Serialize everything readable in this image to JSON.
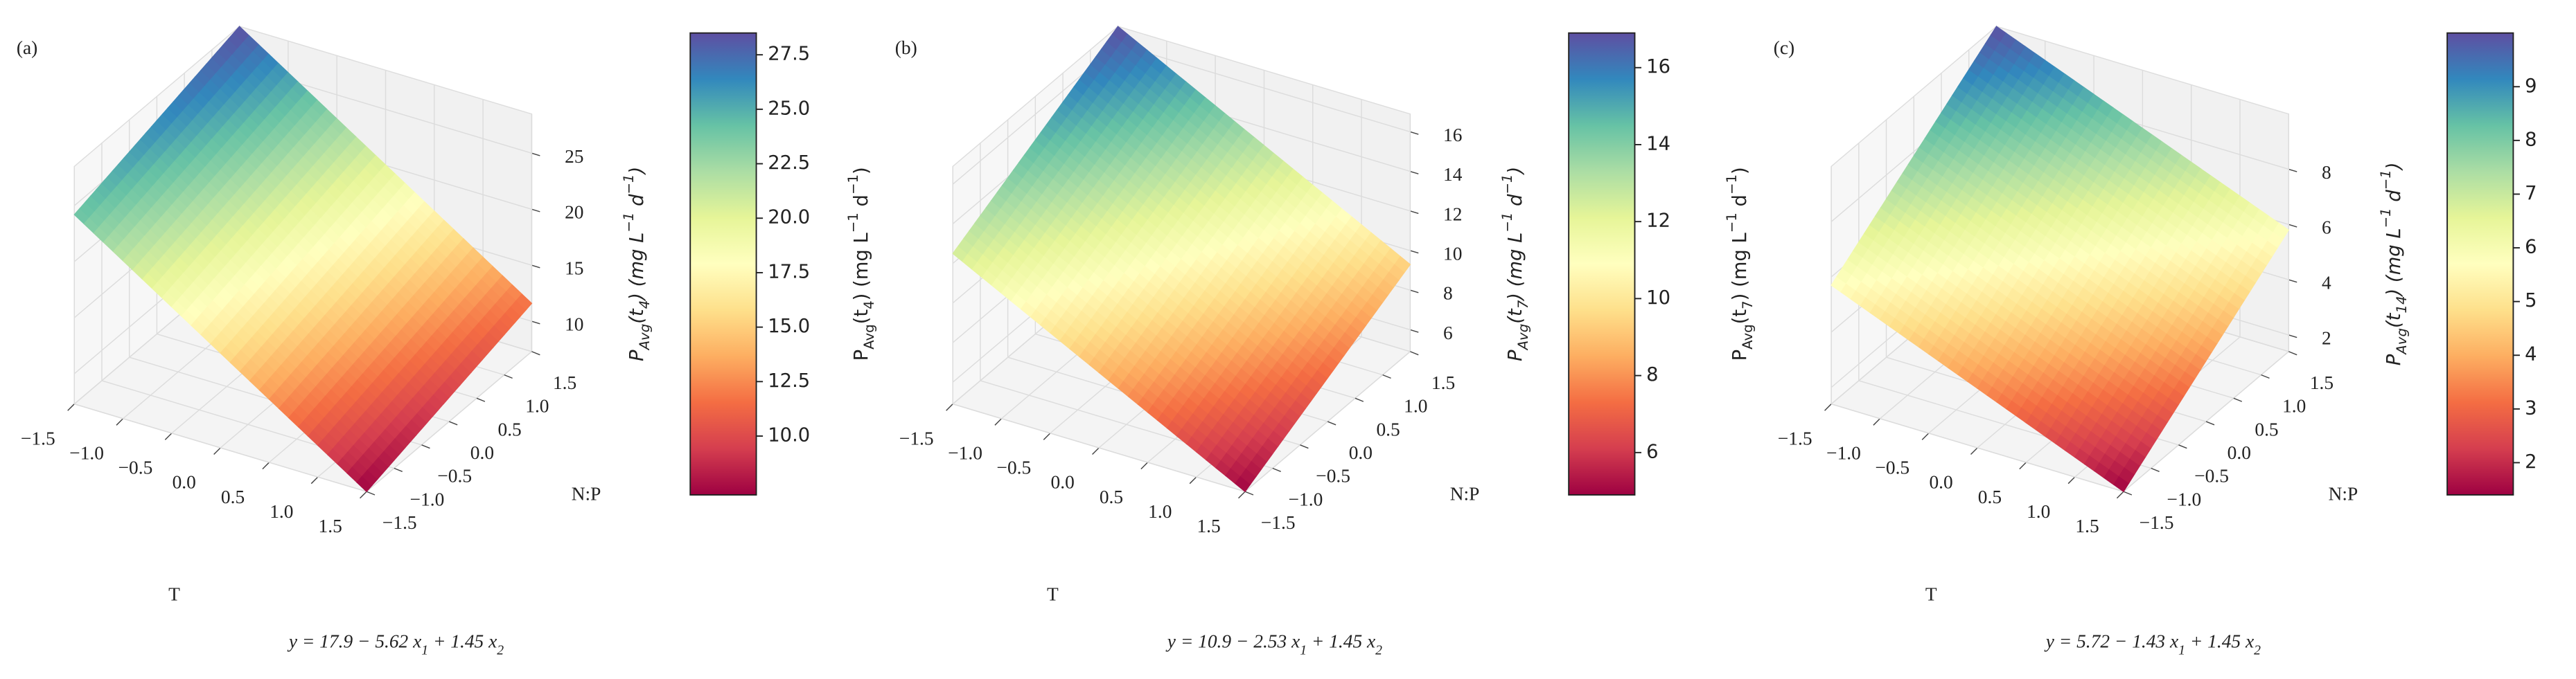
{
  "chart_data": [
    {
      "type": "surface",
      "title": "(a)",
      "xlabel": "T",
      "ylabel": "N:P",
      "zlabel": [
        "P",
        "Avg",
        "(t",
        "4",
        ") (mg L",
        "−1",
        " d",
        "−1",
        ")"
      ],
      "equation": [
        "y = 17.9 − 5.62 x",
        "1",
        " + 1.45 x",
        "2"
      ],
      "x": [
        -1.5,
        1.5
      ],
      "y": [
        -1.5,
        1.5
      ],
      "z": [
        [
          24.2,
          28.5
        ],
        [
          7.3,
          11.6
        ]
      ],
      "xlim": [
        -1.5,
        1.5
      ],
      "ylim": [
        -1.5,
        1.5
      ],
      "zlim": [
        7.3,
        28.5
      ],
      "xticks": [
        {
          "value": -1.5,
          "label": "−1.5"
        },
        {
          "value": -1,
          "label": "−1.0"
        },
        {
          "value": -0.5,
          "label": "−0.5"
        },
        {
          "value": 0,
          "label": "0.0"
        },
        0.5,
        {
          "value": 1,
          "label": "1.0"
        },
        1.5
      ],
      "yticks": [
        {
          "value": -1.5,
          "label": "−1.5"
        },
        {
          "value": -1,
          "label": "−1.0"
        },
        {
          "value": -0.5,
          "label": "−0.5"
        },
        {
          "value": 0,
          "label": "0.0"
        },
        0.5,
        {
          "value": 1,
          "label": "1.0"
        },
        1.5
      ],
      "zticks": [
        10,
        15,
        20,
        25
      ],
      "clim": [
        7.3,
        28.5
      ],
      "cticks": [
        {
          "value": 10,
          "label": "10.0"
        },
        12.5,
        {
          "value": 15,
          "label": "15.0"
        },
        17.5,
        {
          "value": 20,
          "label": "20.0"
        },
        22.5,
        {
          "value": 25,
          "label": "25.0"
        },
        27.5
      ],
      "colormap": [
        "#9e0142",
        "#d53e4f",
        "#f46d43",
        "#fdae61",
        "#fee08b",
        "#ffffbf",
        "#e6f598",
        "#abdda4",
        "#66c2a5",
        "#3288bd",
        "#5e4fa2"
      ]
    },
    {
      "type": "surface",
      "title": "(b)",
      "xlabel": "T",
      "ylabel": "N:P",
      "zlabel": [
        "P",
        "Avg",
        "(t",
        "7",
        ") (mg L",
        "−1",
        " d",
        "−1",
        ")"
      ],
      "equation": [
        "y = 10.9 − 2.53 x",
        "1",
        " + 1.45 x",
        "2"
      ],
      "x": [
        -1.5,
        1.5
      ],
      "y": [
        -1.5,
        1.5
      ],
      "z": [
        [
          12.5,
          16.9
        ],
        [
          4.9,
          9.3
        ]
      ],
      "xlim": [
        -1.5,
        1.5
      ],
      "ylim": [
        -1.5,
        1.5
      ],
      "zlim": [
        4.9,
        16.9
      ],
      "xticks": [
        {
          "value": -1.5,
          "label": "−1.5"
        },
        {
          "value": -1,
          "label": "−1.0"
        },
        {
          "value": -0.5,
          "label": "−0.5"
        },
        {
          "value": 0,
          "label": "0.0"
        },
        0.5,
        {
          "value": 1,
          "label": "1.0"
        },
        1.5
      ],
      "yticks": [
        {
          "value": -1.5,
          "label": "−1.5"
        },
        {
          "value": -1,
          "label": "−1.0"
        },
        {
          "value": -0.5,
          "label": "−0.5"
        },
        {
          "value": 0,
          "label": "0.0"
        },
        0.5,
        {
          "value": 1,
          "label": "1.0"
        },
        1.5
      ],
      "zticks": [
        6,
        8,
        10,
        12,
        14,
        16
      ],
      "clim": [
        4.9,
        16.9
      ],
      "cticks": [
        6,
        8,
        10,
        12,
        14,
        16
      ],
      "colormap": [
        "#9e0142",
        "#d53e4f",
        "#f46d43",
        "#fdae61",
        "#fee08b",
        "#ffffbf",
        "#e6f598",
        "#abdda4",
        "#66c2a5",
        "#3288bd",
        "#5e4fa2"
      ]
    },
    {
      "type": "surface",
      "title": "(c)",
      "xlabel": "T",
      "ylabel": "N:P",
      "zlabel": [
        "P",
        "Avg",
        "(t",
        "14",
        ") (mg L",
        "−1",
        " d",
        "−1",
        ")"
      ],
      "equation": [
        "y = 5.72 − 1.43 x",
        "1",
        " + 1.45 x",
        "2"
      ],
      "x": [
        -1.5,
        1.5
      ],
      "y": [
        -1.5,
        1.5
      ],
      "z": [
        [
          5.7,
          10.0
        ],
        [
          1.4,
          5.8
        ]
      ],
      "xlim": [
        -1.5,
        1.5
      ],
      "ylim": [
        -1.5,
        1.5
      ],
      "zlim": [
        1.4,
        10.0
      ],
      "xticks": [
        {
          "value": -1.5,
          "label": "−1.5"
        },
        {
          "value": -1,
          "label": "−1.0"
        },
        {
          "value": -0.5,
          "label": "−0.5"
        },
        {
          "value": 0,
          "label": "0.0"
        },
        0.5,
        {
          "value": 1,
          "label": "1.0"
        },
        1.5
      ],
      "yticks": [
        {
          "value": -1.5,
          "label": "−1.5"
        },
        {
          "value": -1,
          "label": "−1.0"
        },
        {
          "value": -0.5,
          "label": "−0.5"
        },
        {
          "value": 0,
          "label": "0.0"
        },
        0.5,
        {
          "value": 1,
          "label": "1.0"
        },
        1.5
      ],
      "zticks": [
        2,
        4,
        6,
        8
      ],
      "clim": [
        1.4,
        10.0
      ],
      "cticks": [
        2,
        3,
        4,
        5,
        6,
        7,
        8,
        9
      ],
      "colormap": [
        "#9e0142",
        "#d53e4f",
        "#f46d43",
        "#fdae61",
        "#fee08b",
        "#ffffbf",
        "#e6f598",
        "#abdda4",
        "#66c2a5",
        "#3288bd",
        "#5e4fa2"
      ]
    }
  ]
}
